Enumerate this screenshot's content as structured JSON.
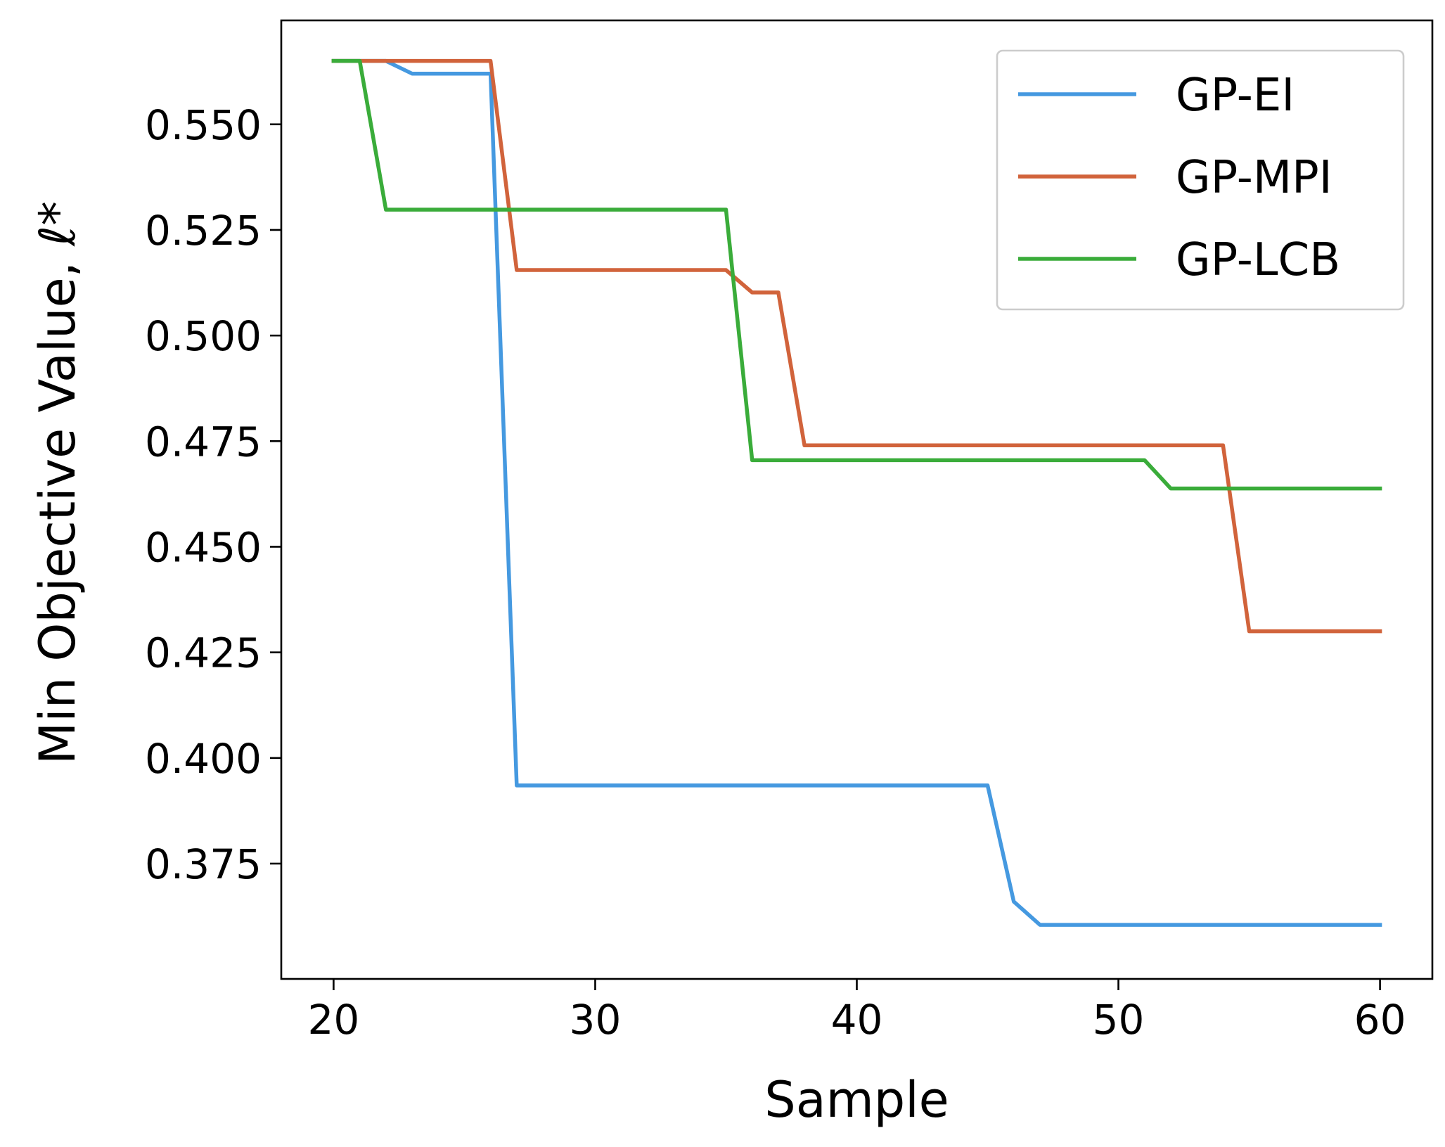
{
  "chart_data": {
    "type": "line",
    "title": "",
    "xlabel": "Sample",
    "ylabel": "Min Objective Value, ℓ*",
    "xlim": [
      18,
      62
    ],
    "ylim": [
      0.3477,
      0.5746
    ],
    "xticks": [
      20,
      30,
      40,
      50,
      60
    ],
    "xtick_labels": [
      "20",
      "30",
      "40",
      "50",
      "60"
    ],
    "yticks": [
      0.375,
      0.4,
      0.425,
      0.45,
      0.475,
      0.5,
      0.525,
      0.55
    ],
    "ytick_labels": [
      "0.375",
      "0.400",
      "0.425",
      "0.450",
      "0.475",
      "0.500",
      "0.525",
      "0.550"
    ],
    "grid": false,
    "legend_position": "top-right",
    "series": [
      {
        "name": "GP-EI",
        "color": "#4599e0",
        "x": [
          20,
          21,
          22,
          23,
          24,
          25,
          26,
          27,
          28,
          29,
          30,
          31,
          32,
          33,
          34,
          35,
          36,
          37,
          38,
          39,
          40,
          41,
          42,
          43,
          44,
          45,
          46,
          47,
          48,
          49,
          50,
          51,
          52,
          53,
          54,
          55,
          56,
          57,
          58,
          59,
          60
        ],
        "y": [
          0.565,
          0.565,
          0.565,
          0.562,
          0.562,
          0.562,
          0.562,
          0.3935,
          0.3935,
          0.3935,
          0.3935,
          0.3935,
          0.3935,
          0.3935,
          0.3935,
          0.3935,
          0.3935,
          0.3935,
          0.3935,
          0.3935,
          0.3935,
          0.3935,
          0.3935,
          0.3935,
          0.3935,
          0.3935,
          0.366,
          0.3605,
          0.3605,
          0.3605,
          0.3605,
          0.3605,
          0.3605,
          0.3605,
          0.3605,
          0.3605,
          0.3605,
          0.3605,
          0.3605,
          0.3605,
          0.3605
        ]
      },
      {
        "name": "GP-MPI",
        "color": "#d1633b",
        "x": [
          20,
          21,
          22,
          23,
          24,
          25,
          26,
          27,
          28,
          29,
          30,
          31,
          32,
          33,
          34,
          35,
          36,
          37,
          38,
          39,
          40,
          41,
          42,
          43,
          44,
          45,
          46,
          47,
          48,
          49,
          50,
          51,
          52,
          53,
          54,
          55,
          56,
          57,
          58,
          59,
          60
        ],
        "y": [
          0.565,
          0.565,
          0.565,
          0.565,
          0.565,
          0.565,
          0.565,
          0.5155,
          0.5155,
          0.5155,
          0.5155,
          0.5155,
          0.5155,
          0.5155,
          0.5155,
          0.5155,
          0.5102,
          0.5102,
          0.474,
          0.474,
          0.474,
          0.474,
          0.474,
          0.474,
          0.474,
          0.474,
          0.474,
          0.474,
          0.474,
          0.474,
          0.474,
          0.474,
          0.474,
          0.474,
          0.474,
          0.43,
          0.43,
          0.43,
          0.43,
          0.43,
          0.43
        ]
      },
      {
        "name": "GP-LCB",
        "color": "#3aac3a",
        "x": [
          20,
          21,
          22,
          23,
          24,
          25,
          26,
          27,
          28,
          29,
          30,
          31,
          32,
          33,
          34,
          35,
          36,
          37,
          38,
          39,
          40,
          41,
          42,
          43,
          44,
          45,
          46,
          47,
          48,
          49,
          50,
          51,
          52,
          53,
          54,
          55,
          56,
          57,
          58,
          59,
          60
        ],
        "y": [
          0.565,
          0.565,
          0.5298,
          0.5298,
          0.5298,
          0.5298,
          0.5298,
          0.5298,
          0.5298,
          0.5298,
          0.5298,
          0.5298,
          0.5298,
          0.5298,
          0.5298,
          0.5298,
          0.4705,
          0.4705,
          0.4705,
          0.4705,
          0.4705,
          0.4705,
          0.4705,
          0.4705,
          0.4705,
          0.4705,
          0.4705,
          0.4705,
          0.4705,
          0.4705,
          0.4705,
          0.4705,
          0.4638,
          0.4638,
          0.4638,
          0.4638,
          0.4638,
          0.4638,
          0.4638,
          0.4638,
          0.4638
        ]
      }
    ]
  }
}
